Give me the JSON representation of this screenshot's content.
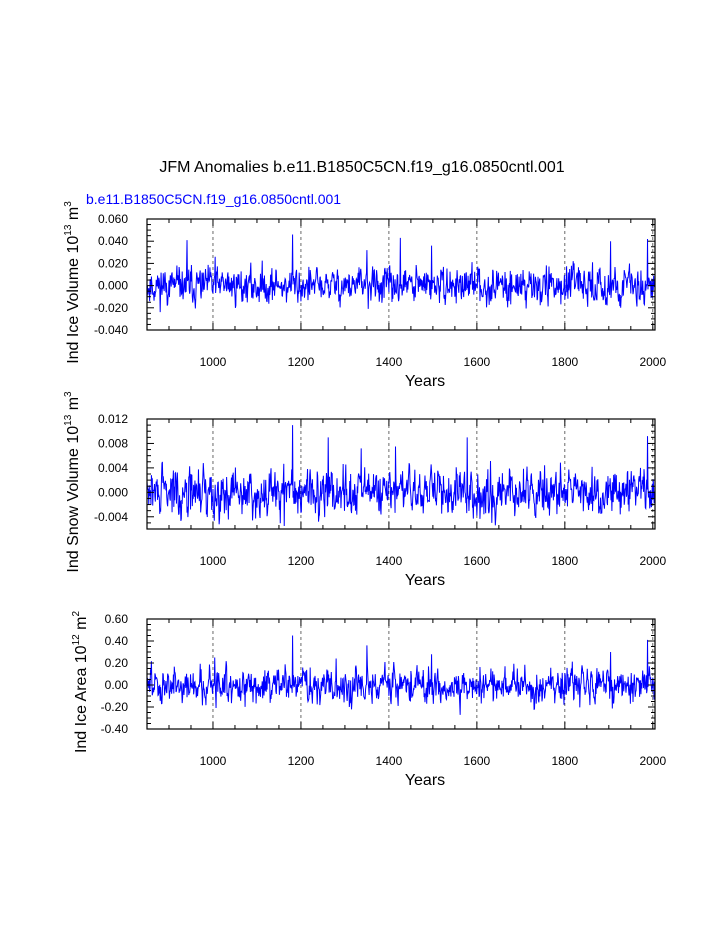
{
  "title": "JFM Anomalies b.e11.B1850C5CN.f19_g16.0850cntl.001",
  "colors": {
    "series": "#0000ff",
    "subtitle": "#0000ff",
    "axis": "#000000",
    "grid": "#444444"
  },
  "chart_data": [
    {
      "type": "line",
      "subtitle": "b.e11.B1850C5CN.f19_g16.0850cntl.001",
      "ylabel_main": "Ind Ice Volume 10",
      "ylabel_exp": "13",
      "ylabel_unit": " m",
      "ylabel_unit_exp": "3",
      "xlabel": "Years",
      "xlim": [
        850,
        2005
      ],
      "ylim": [
        -0.04,
        0.06
      ],
      "xticks": [
        "1000",
        "1200",
        "1400",
        "1600",
        "1800",
        "2000"
      ],
      "yticks": [
        "0.060",
        "0.040",
        "0.020",
        "0.000",
        "-0.020",
        "-0.040"
      ],
      "series": [
        {
          "name": "Ind Ice Volume anomaly",
          "x_start": 850,
          "x_end": 2005,
          "std": 0.0075,
          "mean": 0.0,
          "seed": 11,
          "spikes": [
            [
              941,
              0.041
            ],
            [
              1181,
              0.046
            ],
            [
              1426,
              0.043
            ],
            [
              1904,
              0.04
            ],
            [
              1988,
              0.042
            ],
            [
              1497,
              0.036
            ],
            [
              1005,
              0.026
            ],
            [
              1350,
              0.032
            ]
          ]
        }
      ]
    },
    {
      "type": "line",
      "ylabel_main": "Ind Snow Volume 10",
      "ylabel_exp": "13",
      "ylabel_unit": " m",
      "ylabel_unit_exp": "3",
      "xlabel": "Years",
      "xlim": [
        850,
        2005
      ],
      "ylim": [
        -0.006,
        0.012
      ],
      "xticks": [
        "1000",
        "1200",
        "1400",
        "1600",
        "1800",
        "2000"
      ],
      "yticks": [
        "0.012",
        "0.008",
        "0.004",
        "0.000",
        "-0.004"
      ],
      "series": [
        {
          "name": "Ind Snow Volume anomaly",
          "x_start": 850,
          "x_end": 2005,
          "std": 0.0018,
          "mean": 0.0,
          "seed": 29,
          "spikes": [
            [
              1181,
              0.011
            ],
            [
              1262,
              0.009
            ],
            [
              1578,
              0.009
            ],
            [
              1988,
              0.0092
            ],
            [
              1415,
              0.0075
            ],
            [
              1337,
              0.0072
            ],
            [
              1162,
              -0.0055
            ]
          ]
        }
      ]
    },
    {
      "type": "line",
      "ylabel_main": "Ind Ice Area 10",
      "ylabel_exp": "12",
      "ylabel_unit": " m",
      "ylabel_unit_exp": "2",
      "xlabel": "Years",
      "xlim": [
        850,
        2005
      ],
      "ylim": [
        -0.4,
        0.6
      ],
      "xticks": [
        "1000",
        "1200",
        "1400",
        "1600",
        "1800",
        "2000"
      ],
      "yticks": [
        "0.60",
        "0.40",
        "0.20",
        "0.00",
        "-0.20",
        "-0.40"
      ],
      "series": [
        {
          "name": "Ind Ice Area anomaly",
          "x_start": 850,
          "x_end": 2005,
          "std": 0.075,
          "mean": 0.0,
          "seed": 47,
          "spikes": [
            [
              1181,
              0.45
            ],
            [
              1988,
              0.41
            ],
            [
              1350,
              0.36
            ],
            [
              1004,
              0.25
            ],
            [
              1904,
              0.3
            ],
            [
              1497,
              0.28
            ]
          ]
        }
      ]
    }
  ]
}
